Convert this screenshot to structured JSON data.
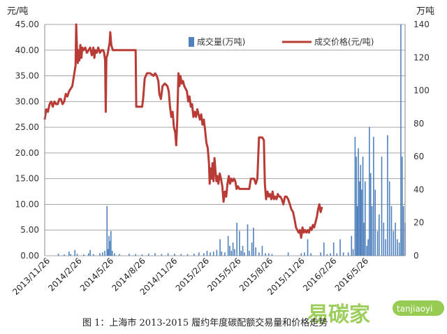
{
  "chart_data": {
    "type": "bar+line",
    "title": "",
    "caption": "图 1：上海市 2013-2015 履约年度碳配额交易量和价格走势",
    "left_axis": {
      "unit_label": "元/吨",
      "ticks": [
        "0.00",
        "5.00",
        "10.00",
        "15.00",
        "20.00",
        "25.00",
        "30.00",
        "35.00",
        "40.00",
        "45.00"
      ],
      "ylim": [
        0,
        45
      ]
    },
    "right_axis": {
      "unit_label": "万吨",
      "ticks": [
        "0",
        "20",
        "40",
        "60",
        "80",
        "100",
        "120",
        "140"
      ],
      "ylim": [
        0,
        140
      ]
    },
    "x_ticks": [
      "2013/11/26",
      "2014/2/26",
      "2014/5/26",
      "2014/8/26",
      "2014/11/26",
      "2015/2/26",
      "2015/5/26",
      "2015/8/26",
      "2015/11/26",
      "2016/2/26",
      "2016/5/26"
    ],
    "grid": true,
    "legend_position": "top-right",
    "series": [
      {
        "name": "成交量(万吨)",
        "type": "bar",
        "axis": "right",
        "color": "#4f81bd",
        "points": [
          [
            4.2,
            1.2
          ],
          [
            6.0,
            0.8
          ],
          [
            7.5,
            2.5
          ],
          [
            8.0,
            1.0
          ],
          [
            9.3,
            3.5
          ],
          [
            10.0,
            1.2
          ],
          [
            12.0,
            0.8
          ],
          [
            13.5,
            1.5
          ],
          [
            14.0,
            3.5
          ],
          [
            15.0,
            1.0
          ],
          [
            17.0,
            1.5
          ],
          [
            17.8,
            2.0
          ],
          [
            18.5,
            3.0
          ],
          [
            19.2,
            30.0
          ],
          [
            19.5,
            4.0
          ],
          [
            19.8,
            12.0
          ],
          [
            20.0,
            9.0
          ],
          [
            20.4,
            15.0
          ],
          [
            20.8,
            3.0
          ],
          [
            21.5,
            1.5
          ],
          [
            23.0,
            1.0
          ],
          [
            26.0,
            1.2
          ],
          [
            28.0,
            1.0
          ],
          [
            30.0,
            0.8
          ],
          [
            32.0,
            1.2
          ],
          [
            34.0,
            1.5
          ],
          [
            36.0,
            1.0
          ],
          [
            38.0,
            1.5
          ],
          [
            40.0,
            1.2
          ],
          [
            42.0,
            1.0
          ],
          [
            44.0,
            1.0
          ],
          [
            46.0,
            1.2
          ],
          [
            47.5,
            2.0
          ],
          [
            49.0,
            1.5
          ],
          [
            50.0,
            3.0
          ],
          [
            51.0,
            2.0
          ],
          [
            52.0,
            2.5
          ],
          [
            53.0,
            3.5
          ],
          [
            54.0,
            10.0
          ],
          [
            54.5,
            2.5
          ],
          [
            55.5,
            2.0
          ],
          [
            56.5,
            12.0
          ],
          [
            57.0,
            6.0
          ],
          [
            57.5,
            3.0
          ],
          [
            58.0,
            8.0
          ],
          [
            58.5,
            4.0
          ],
          [
            59.2,
            20.0
          ],
          [
            60.0,
            15.0
          ],
          [
            60.5,
            3.0
          ],
          [
            61.0,
            6.0
          ],
          [
            61.5,
            2.0
          ],
          [
            62.5,
            19.0
          ],
          [
            63.0,
            3.0
          ],
          [
            63.8,
            8.0
          ],
          [
            64.3,
            17.0
          ],
          [
            65.0,
            5.0
          ],
          [
            66.0,
            2.0
          ],
          [
            67.0,
            6.0
          ],
          [
            68.0,
            1.5
          ],
          [
            69.0,
            1.5
          ],
          [
            70.0,
            1.0
          ],
          [
            75.0,
            2.0
          ],
          [
            79.0,
            1.5
          ],
          [
            80.0,
            2.0
          ],
          [
            81.0,
            10.0
          ],
          [
            82.0,
            1.5
          ],
          [
            85.0,
            2.0
          ],
          [
            86.0,
            8.0
          ],
          [
            87.0,
            1.0
          ],
          [
            88.0,
            1.5
          ],
          [
            89.0,
            8.0
          ],
          [
            90.0,
            1.5
          ],
          [
            91.0,
            10.0
          ],
          [
            92.0,
            2.0
          ],
          [
            93.5,
            2.0
          ],
          [
            94.5,
            12.0
          ],
          [
            95.0,
            4.0
          ],
          [
            95.6,
            72.0
          ],
          [
            96.0,
            60.0
          ],
          [
            96.3,
            30.0
          ],
          [
            96.6,
            65.0
          ],
          [
            97.0,
            45.0
          ],
          [
            97.3,
            55.0
          ],
          [
            97.6,
            40.0
          ],
          [
            98.0,
            60.0
          ],
          [
            98.3,
            20.0
          ],
          [
            98.7,
            45.0
          ],
          [
            99.2,
            6.0
          ],
          [
            99.6,
            10.0
          ],
          [
            100.0,
            78.0
          ],
          [
            100.4,
            50.0
          ],
          [
            100.8,
            30.0
          ],
          [
            101.3,
            72.0
          ],
          [
            101.8,
            40.0
          ],
          [
            102.5,
            15.0
          ],
          [
            103.0,
            25.0
          ],
          [
            103.8,
            60.0
          ],
          [
            104.4,
            20.0
          ],
          [
            105.0,
            10.0
          ],
          [
            105.6,
            73.0
          ],
          [
            106.2,
            45.0
          ],
          [
            106.8,
            30.0
          ],
          [
            107.4,
            15.0
          ],
          [
            108.0,
            20.0
          ],
          [
            108.6,
            10.0
          ],
          [
            109.2,
            8.0
          ],
          [
            109.7,
            140.0
          ],
          [
            110.1,
            60.0
          ],
          [
            110.5,
            30.0
          ],
          [
            111.0,
            20.0
          ]
        ]
      },
      {
        "name": "成交价格(元/吨)",
        "type": "line",
        "axis": "left",
        "color": "#b83b36",
        "points": [
          [
            0.0,
            26.5
          ],
          [
            0.5,
            28.5
          ],
          [
            1.0,
            28.0
          ],
          [
            1.5,
            29.5
          ],
          [
            2.0,
            30.0
          ],
          [
            2.5,
            29.0
          ],
          [
            3.0,
            30.0
          ],
          [
            3.5,
            29.5
          ],
          [
            4.0,
            29.5
          ],
          [
            4.5,
            30.5
          ],
          [
            5.0,
            30.5
          ],
          [
            5.5,
            29.5
          ],
          [
            6.0,
            30.0
          ],
          [
            6.5,
            31.5
          ],
          [
            7.0,
            31.0
          ],
          [
            7.5,
            32.0
          ],
          [
            8.0,
            32.5
          ],
          [
            8.5,
            33.0
          ],
          [
            9.0,
            35.0
          ],
          [
            9.5,
            37.0
          ],
          [
            9.7,
            45.0
          ],
          [
            10.0,
            39.0
          ],
          [
            10.2,
            37.5
          ],
          [
            10.5,
            40.0
          ],
          [
            10.7,
            38.0
          ],
          [
            11.0,
            41.0
          ],
          [
            11.3,
            38.5
          ],
          [
            11.6,
            40.5
          ],
          [
            12.0,
            40.0
          ],
          [
            12.5,
            40.5
          ],
          [
            13.0,
            39.5
          ],
          [
            13.5,
            40.0
          ],
          [
            14.0,
            40.5
          ],
          [
            14.5,
            39.0
          ],
          [
            15.0,
            40.5
          ],
          [
            15.3,
            38.5
          ],
          [
            15.6,
            40.0
          ],
          [
            16.0,
            39.5
          ],
          [
            16.5,
            40.5
          ],
          [
            17.0,
            39.5
          ],
          [
            17.5,
            40.0
          ],
          [
            18.0,
            40.0
          ],
          [
            18.3,
            39.5
          ],
          [
            18.6,
            38.0
          ],
          [
            18.8,
            28.0
          ],
          [
            19.0,
            38.5
          ],
          [
            19.3,
            39.0
          ],
          [
            19.6,
            40.0
          ],
          [
            20.0,
            41.5
          ],
          [
            20.2,
            43.5
          ],
          [
            20.5,
            41.0
          ],
          [
            21.0,
            40.0
          ],
          [
            22.0,
            40.0
          ],
          [
            23.0,
            40.0
          ],
          [
            24.0,
            40.0
          ],
          [
            25.0,
            40.0
          ],
          [
            26.0,
            40.0
          ],
          [
            27.0,
            40.0
          ],
          [
            28.0,
            40.0
          ],
          [
            28.2,
            29.0
          ],
          [
            29.0,
            29.0
          ],
          [
            30.0,
            29.0
          ],
          [
            30.3,
            30.5
          ],
          [
            30.8,
            34.5
          ],
          [
            31.5,
            35.5
          ],
          [
            32.5,
            35.5
          ],
          [
            33.5,
            35.0
          ],
          [
            34.0,
            35.5
          ],
          [
            34.5,
            35.0
          ],
          [
            35.0,
            34.0
          ],
          [
            35.3,
            31.5
          ],
          [
            35.8,
            30.5
          ],
          [
            36.3,
            33.0
          ],
          [
            37.0,
            33.5
          ],
          [
            37.8,
            33.0
          ],
          [
            38.2,
            32.0
          ],
          [
            38.6,
            29.0
          ],
          [
            39.0,
            27.0
          ],
          [
            39.4,
            28.0
          ],
          [
            39.8,
            25.0
          ],
          [
            40.2,
            24.0
          ],
          [
            40.5,
            21.5
          ],
          [
            40.8,
            26.0
          ],
          [
            41.2,
            35.5
          ],
          [
            41.5,
            33.0
          ],
          [
            41.8,
            35.0
          ],
          [
            42.2,
            33.5
          ],
          [
            42.6,
            34.0
          ],
          [
            43.0,
            33.0
          ],
          [
            43.4,
            32.5
          ],
          [
            43.8,
            32.0
          ],
          [
            44.2,
            30.0
          ],
          [
            44.6,
            31.0
          ],
          [
            45.0,
            29.0
          ],
          [
            45.4,
            29.5
          ],
          [
            45.8,
            27.0
          ],
          [
            46.2,
            28.0
          ],
          [
            46.6,
            27.0
          ],
          [
            47.0,
            28.5
          ],
          [
            47.4,
            27.5
          ],
          [
            47.8,
            26.5
          ],
          [
            48.2,
            27.5
          ],
          [
            48.6,
            25.5
          ],
          [
            49.0,
            26.5
          ],
          [
            49.4,
            24.5
          ],
          [
            49.8,
            22.0
          ],
          [
            50.2,
            21.0
          ],
          [
            50.6,
            18.0
          ],
          [
            50.8,
            14.0
          ],
          [
            51.1,
            17.0
          ],
          [
            51.4,
            15.0
          ],
          [
            51.7,
            18.0
          ],
          [
            52.0,
            14.5
          ],
          [
            52.3,
            19.0
          ],
          [
            52.6,
            16.5
          ],
          [
            52.9,
            14.5
          ],
          [
            53.2,
            15.5
          ],
          [
            53.5,
            14.0
          ],
          [
            53.9,
            16.0
          ],
          [
            54.3,
            15.0
          ],
          [
            54.7,
            13.5
          ],
          [
            55.1,
            10.5
          ],
          [
            55.5,
            12.5
          ],
          [
            55.9,
            11.5
          ],
          [
            56.3,
            14.0
          ],
          [
            56.7,
            15.5
          ],
          [
            57.1,
            14.0
          ],
          [
            57.5,
            15.0
          ],
          [
            57.9,
            14.5
          ],
          [
            58.3,
            15.0
          ],
          [
            58.7,
            14.5
          ],
          [
            59.1,
            13.0
          ],
          [
            59.5,
            13.5
          ],
          [
            60.0,
            13.0
          ],
          [
            60.5,
            13.0
          ],
          [
            61.0,
            13.0
          ],
          [
            62.0,
            13.0
          ],
          [
            63.0,
            13.0
          ],
          [
            63.5,
            15.0
          ],
          [
            64.5,
            15.0
          ],
          [
            65.0,
            14.0
          ],
          [
            65.5,
            15.0
          ],
          [
            66.0,
            23.0
          ],
          [
            67.0,
            23.0
          ],
          [
            67.5,
            22.5
          ],
          [
            67.8,
            14.0
          ],
          [
            68.2,
            11.0
          ],
          [
            68.6,
            12.5
          ],
          [
            69.0,
            11.5
          ],
          [
            69.4,
            12.0
          ],
          [
            69.8,
            11.0
          ],
          [
            70.2,
            12.5
          ],
          [
            70.6,
            11.0
          ],
          [
            71.0,
            11.5
          ],
          [
            71.4,
            11.0
          ],
          [
            71.8,
            12.0
          ],
          [
            72.2,
            11.5
          ],
          [
            72.6,
            11.5
          ],
          [
            73.0,
            11.0
          ],
          [
            73.5,
            10.0
          ],
          [
            74.0,
            11.5
          ],
          [
            74.5,
            11.5
          ],
          [
            75.0,
            11.0
          ],
          [
            75.5,
            10.0
          ],
          [
            76.0,
            9.0
          ],
          [
            76.5,
            8.5
          ],
          [
            77.0,
            7.0
          ],
          [
            77.4,
            5.5
          ],
          [
            77.8,
            5.0
          ],
          [
            78.2,
            4.5
          ],
          [
            78.6,
            5.0
          ],
          [
            79.0,
            3.5
          ],
          [
            79.4,
            5.5
          ],
          [
            79.8,
            4.5
          ],
          [
            80.2,
            5.0
          ],
          [
            80.6,
            4.5
          ],
          [
            81.0,
            5.0
          ],
          [
            81.4,
            4.5
          ],
          [
            81.8,
            5.5
          ],
          [
            82.2,
            5.0
          ],
          [
            82.6,
            6.0
          ],
          [
            83.0,
            5.5
          ],
          [
            83.4,
            6.5
          ],
          [
            83.8,
            7.5
          ],
          [
            84.2,
            9.0
          ],
          [
            84.6,
            10.0
          ],
          [
            85.0,
            8.5
          ],
          [
            85.4,
            9.5
          ]
        ],
        "_note_ignore": ""
      }
    ]
  }
}
